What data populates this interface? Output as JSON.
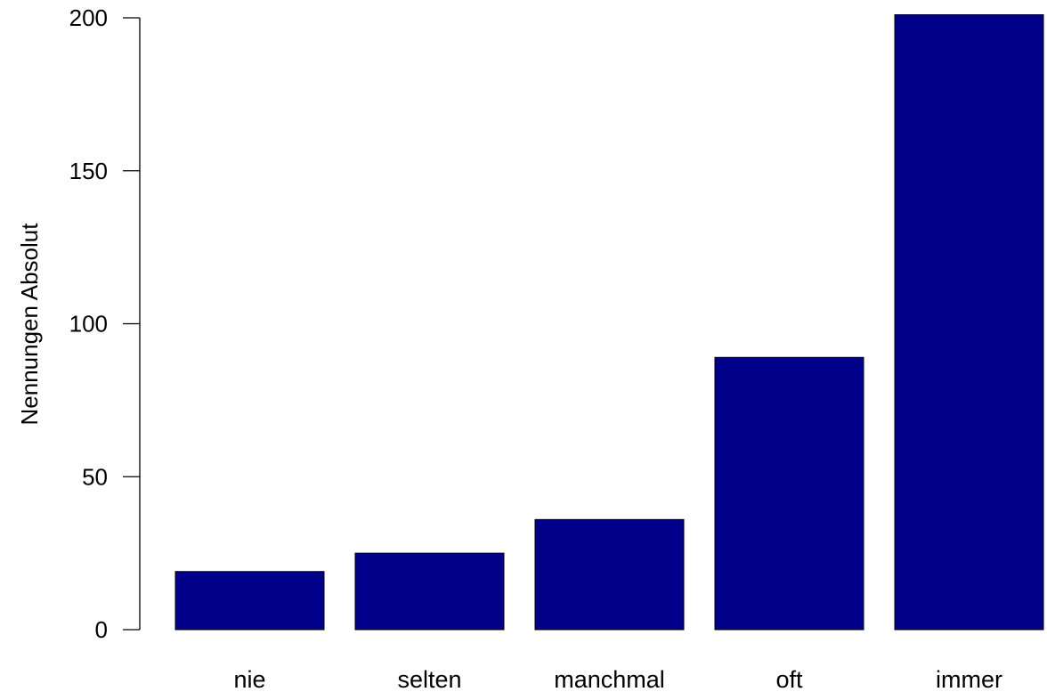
{
  "chart_data": {
    "type": "bar",
    "categories": [
      "nie",
      "selten",
      "manchmal",
      "oft",
      "immer"
    ],
    "values": [
      19,
      25,
      36,
      89,
      201
    ],
    "title": "",
    "xlabel": "",
    "ylabel": "Nennungen Absolut",
    "ylim": [
      0,
      200
    ],
    "yticks": [
      0,
      50,
      100,
      150,
      200
    ],
    "ytick_labels": [
      "0",
      "50",
      "100",
      "150",
      "200"
    ],
    "grid": false,
    "legend": "none",
    "bar_color": "#00008B",
    "edge_color": "#000000"
  }
}
